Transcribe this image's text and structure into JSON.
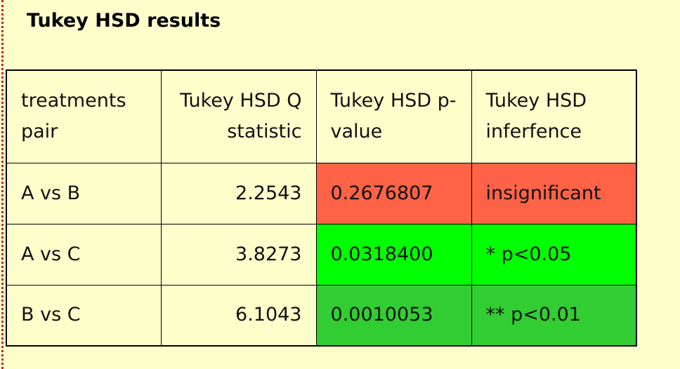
{
  "header": {
    "title": "Tukey HSD results"
  },
  "table": {
    "columns": [
      "treatments pair",
      "Tukey HSD Q statistic",
      "Tukey HSD p-value",
      "Tukey HSD inferfence"
    ],
    "rows": [
      {
        "cells": [
          "A vs B",
          "2.2543",
          "0.2676807",
          "insignificant"
        ],
        "color": "#ff6347"
      },
      {
        "cells": [
          "A vs C",
          "3.8273",
          "0.0318400",
          "* p<0.05"
        ],
        "color": "#00ff00"
      },
      {
        "cells": [
          "B vs C",
          "6.1043",
          "0.0010053",
          "** p<0.01"
        ],
        "color": "#32cd32"
      }
    ]
  }
}
